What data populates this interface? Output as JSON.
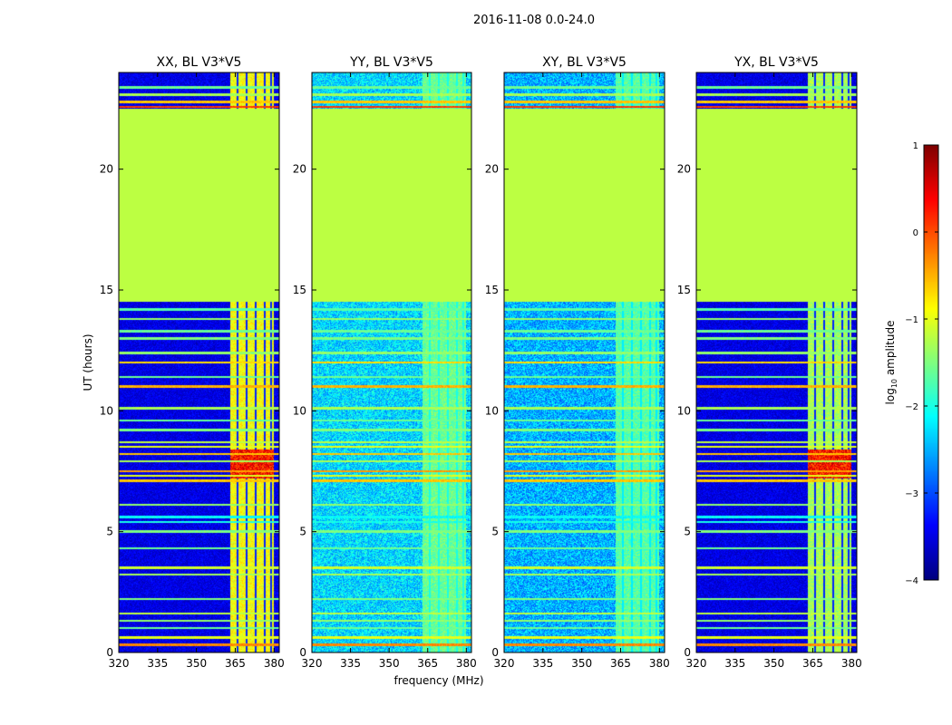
{
  "chart_data": {
    "type": "heatmap",
    "suptitle": "2016-11-08 0.0-24.0",
    "xlabel": "frequency (MHz)",
    "ylabel": "UT (hours)",
    "xlim": [
      320,
      382
    ],
    "ylim": [
      0,
      24
    ],
    "xticks": [
      "320",
      "335",
      "350",
      "365",
      "380"
    ],
    "yticks": [
      "0",
      "5",
      "10",
      "15",
      "20"
    ],
    "colorbar": {
      "label": "log10 amplitude",
      "label_base": "log",
      "label_sub": "10",
      "label_rest": " amplitude",
      "range": [
        -4,
        1
      ],
      "ticks": [
        "1",
        "0",
        "−1",
        "−2",
        "−3",
        "−4"
      ],
      "colormap": "jet"
    },
    "flagged_region": {
      "ut_start": 14.5,
      "ut_end": 22.5,
      "value": -1.2
    },
    "rfi_band_mhz": [
      363,
      380
    ],
    "panels": [
      {
        "title": "XX, BL V3*V5",
        "pol": "XX",
        "background": -3.5,
        "band": -0.9
      },
      {
        "title": "YY, BL V3*V5",
        "pol": "YY",
        "background": -2.3,
        "band": -1.6
      },
      {
        "title": "XY, BL V3*V5",
        "pol": "XY",
        "background": -2.5,
        "band": -1.7
      },
      {
        "title": "YX, BL V3*V5",
        "pol": "YX",
        "background": -3.5,
        "band": -1.3
      }
    ]
  }
}
